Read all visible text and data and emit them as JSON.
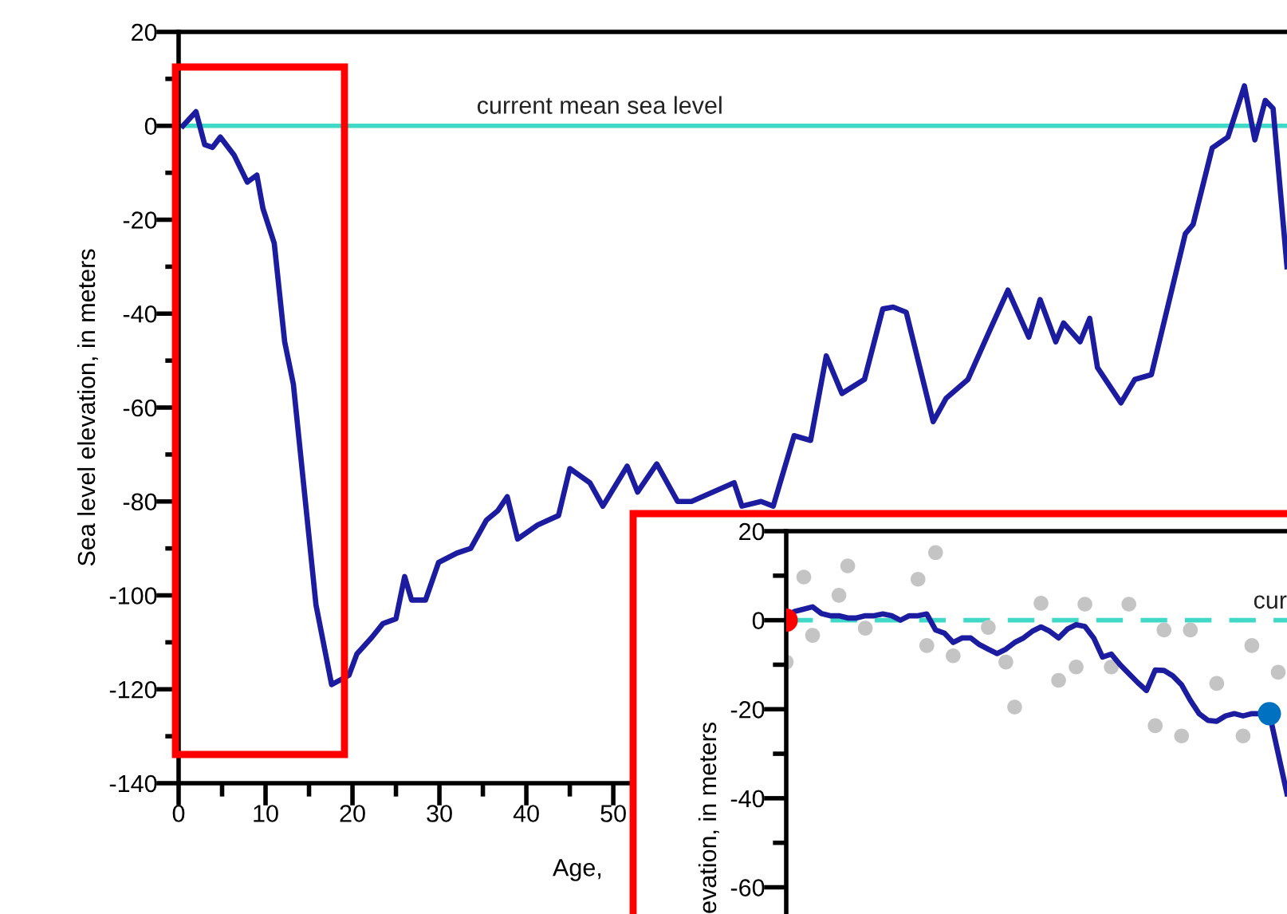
{
  "chart_data": [
    {
      "type": "line",
      "ylabel": "Sea level elevation, in meters",
      "xlabel": "Age,",
      "xlim": [
        0,
        127.5
      ],
      "ylim": [
        -140,
        20
      ],
      "xticks": [
        0,
        {
          "value": 5,
          "label": null
        },
        10,
        {
          "value": 15,
          "label": null
        },
        20,
        {
          "value": 25,
          "label": null
        },
        30,
        {
          "value": 35,
          "label": null
        },
        40,
        {
          "value": 45,
          "label": null
        },
        50
      ],
      "yticks": [
        -140,
        {
          "value": -130,
          "label": null
        },
        -120,
        {
          "value": -110,
          "label": null
        },
        -100,
        {
          "value": -90,
          "label": null
        },
        -80,
        {
          "value": -70,
          "label": null
        },
        -60,
        {
          "value": -50,
          "label": null
        },
        -40,
        {
          "value": -30,
          "label": null
        },
        -20,
        {
          "value": -10,
          "label": null
        },
        0,
        {
          "value": 10,
          "label": null
        },
        20
      ],
      "x": [
        0.5,
        2,
        3,
        3.9,
        4.8,
        6.4,
        7.9,
        9,
        9.7,
        11,
        12.2,
        13.2,
        15.8,
        17.6,
        19.6,
        20.5,
        22.2,
        23.5,
        25,
        26,
        26.8,
        28.4,
        29.9,
        32,
        33.6,
        35.4,
        36.7,
        37.8,
        39,
        41.3,
        43.7,
        45,
        47.3,
        48.8,
        51.6,
        52.8,
        55,
        57.4,
        59,
        63.9,
        64.8,
        67,
        68.4,
        70.8,
        72.7,
        74.5,
        76.3,
        78.9,
        81,
        82.2,
        83.7,
        86.8,
        88.3,
        90.8,
        93.2,
        95.4,
        97.8,
        99.1,
        100.9,
        101.8,
        103.7,
        104.8,
        105.7,
        108.4,
        110,
        111.9,
        115.8,
        116.7,
        118.9,
        120.7,
        122.6,
        123.8,
        125,
        125.9,
        127.5
      ],
      "series": [
        {
          "color": "#1c1ca0",
          "values": [
            0,
            3,
            -4,
            -4.6,
            -2.4,
            -6.3,
            -12,
            -10.5,
            -17.6,
            -25,
            -46,
            -55,
            -102,
            -119,
            -117,
            -112.5,
            -109,
            -106,
            -105,
            -96,
            -101,
            -101,
            -93,
            -91,
            -90,
            -84,
            -82,
            -79,
            -88,
            -85,
            -83,
            -73,
            -76,
            -81,
            -72.5,
            -78,
            -72,
            -80,
            -80,
            -76,
            -81,
            -80,
            -81,
            -66,
            -67,
            -49,
            -57,
            -54,
            -39,
            -38.6,
            -39.7,
            -63,
            -58,
            -54,
            -44,
            -35,
            -45,
            -37,
            -46,
            -42,
            -46,
            -41,
            -51.5,
            -59,
            -54,
            -53,
            -23,
            -21,
            -4.7,
            -2.4,
            8.5,
            -3,
            5.4,
            3.7,
            -30
          ]
        }
      ],
      "ref_lines": [
        {
          "axis": "y",
          "value": 0,
          "label": "current mean sea level",
          "color": "#40d9c8",
          "line_style": "solid"
        }
      ],
      "grid": false,
      "legend": false,
      "marker": "none",
      "line_style": "solid"
    },
    {
      "type": "line",
      "ylabel": "evation, in meters",
      "tick_labels": "y",
      "categories": [
        null,
        null,
        null,
        null,
        null,
        null,
        null,
        null,
        null,
        null,
        null,
        null,
        null,
        null,
        null,
        null,
        null,
        null,
        null,
        null,
        null,
        null,
        null,
        null,
        null,
        null,
        null,
        null,
        null,
        null,
        null,
        null,
        null,
        null,
        null,
        null,
        null,
        null,
        null,
        null,
        null,
        null,
        null,
        null,
        null,
        null,
        null,
        null,
        null,
        null,
        null,
        null,
        null,
        null,
        null,
        null,
        null,
        null
      ],
      "ylim": [
        -66,
        20
      ],
      "yticks": [
        -60,
        {
          "value": -50,
          "label": null
        },
        -40,
        {
          "value": -30,
          "label": null
        },
        -20,
        {
          "value": -10,
          "label": null
        },
        0,
        {
          "value": 10,
          "label": null
        },
        20
      ],
      "series": [
        {
          "type": "scatter",
          "color": "#c4c4c4",
          "values": [
            -9.4,
            null,
            9.7,
            -3.4,
            null,
            null,
            5.6,
            12.2,
            null,
            -1.8,
            null,
            null,
            null,
            null,
            null,
            9.2,
            -5.7,
            15.2,
            null,
            -8,
            null,
            null,
            null,
            -1.6,
            null,
            -9.4,
            -19.5,
            null,
            null,
            3.8,
            null,
            -13.5,
            null,
            -10.5,
            3.6,
            null,
            null,
            -10.5,
            null,
            3.6,
            null,
            null,
            -23.7,
            -2.2,
            null,
            -26,
            -2.2,
            null,
            null,
            -14.2,
            null,
            null,
            -26,
            -5.7,
            null,
            null,
            -11.7,
            null
          ]
        },
        {
          "type": "line",
          "color": "#1c1ca0",
          "values": [
            1,
            2,
            2.5,
            3,
            1.5,
            1,
            1,
            0.5,
            0.5,
            1,
            1,
            1.4,
            1,
            0,
            1,
            1,
            1.4,
            -2.2,
            -2.9,
            -5,
            -4,
            -4,
            -5.5,
            -6.5,
            -7.5,
            -6.5,
            -5,
            -4,
            -2.5,
            -1.5,
            -2.5,
            -4,
            -2,
            -1,
            -1.4,
            -4,
            -8.3,
            -7.6,
            -10,
            -12,
            -14,
            -15.8,
            -11.2,
            -11.3,
            -12.5,
            -14.5,
            -18,
            -21,
            -22.5,
            -22.7,
            -21.5,
            -21,
            -21.5,
            -21,
            -21,
            -21,
            -30,
            -39
          ]
        },
        {
          "type": "scatter",
          "color": "#ff0000",
          "values": [
            0,
            null,
            null,
            null,
            null,
            null,
            null,
            null,
            null,
            null,
            null,
            null,
            null,
            null,
            null,
            null,
            null,
            null,
            null,
            null,
            null,
            null,
            null,
            null,
            null,
            null,
            null,
            null,
            null,
            null,
            null,
            null,
            null,
            null,
            null,
            null,
            null,
            null,
            null,
            null,
            null,
            null,
            null,
            null,
            null,
            null,
            null,
            null,
            null,
            null,
            null,
            null,
            null,
            null,
            null,
            null,
            null,
            null
          ]
        },
        {
          "type": "scatter",
          "color": "#0070c0",
          "values": [
            null,
            null,
            null,
            null,
            null,
            null,
            null,
            null,
            null,
            null,
            null,
            null,
            null,
            null,
            null,
            null,
            null,
            null,
            null,
            null,
            null,
            null,
            null,
            null,
            null,
            null,
            null,
            null,
            null,
            null,
            null,
            null,
            null,
            null,
            null,
            null,
            null,
            null,
            null,
            null,
            null,
            null,
            null,
            null,
            null,
            null,
            null,
            null,
            null,
            null,
            null,
            null,
            null,
            null,
            null,
            -21,
            null,
            null
          ]
        }
      ],
      "ref_lines": [
        {
          "axis": "y",
          "value": 0,
          "label": "cur",
          "color": "#40d9c8",
          "line_style": "dashed"
        }
      ],
      "grid": false,
      "legend": false
    }
  ]
}
